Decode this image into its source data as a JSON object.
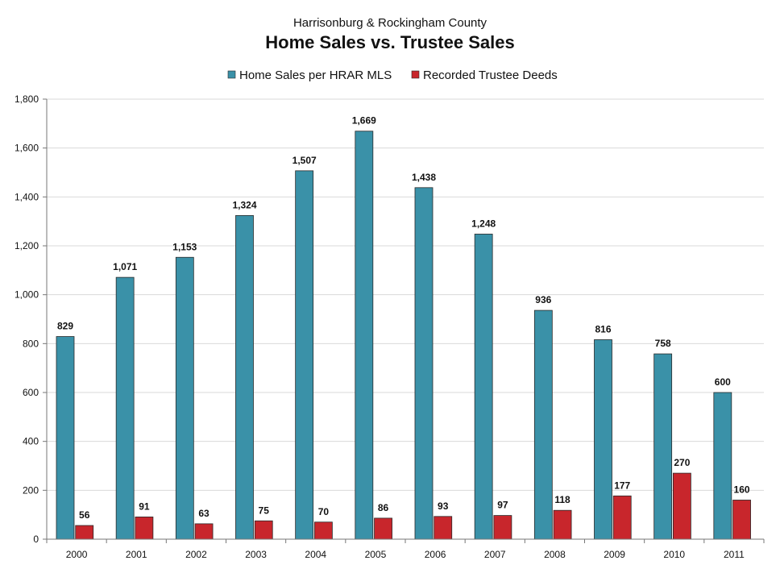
{
  "chart_data": {
    "type": "bar",
    "subtitle": "Harrisonburg & Rockingham County",
    "title": "Home Sales vs. Trustee Sales",
    "xlabel": "",
    "ylabel": "",
    "categories": [
      "2000",
      "2001",
      "2002",
      "2003",
      "2004",
      "2005",
      "2006",
      "2007",
      "2008",
      "2009",
      "2010",
      "2011"
    ],
    "series": [
      {
        "name": "Home Sales per HRAR MLS",
        "color": "#3a91a8",
        "values": [
          829,
          1071,
          1153,
          1324,
          1507,
          1669,
          1438,
          1248,
          936,
          816,
          758,
          600
        ],
        "labels": [
          "829",
          "1,071",
          "1,153",
          "1,324",
          "1,507",
          "1,669",
          "1,438",
          "1,248",
          "936",
          "816",
          "758",
          "600"
        ]
      },
      {
        "name": "Recorded Trustee Deeds",
        "color": "#c8262c",
        "values": [
          56,
          91,
          63,
          75,
          70,
          86,
          93,
          97,
          118,
          177,
          270,
          160
        ],
        "labels": [
          "56",
          "91",
          "63",
          "75",
          "70",
          "86",
          "93",
          "97",
          "118",
          "177",
          "270",
          "160"
        ]
      }
    ],
    "ylim": [
      0,
      1800
    ],
    "yticks": [
      "0",
      "200",
      "400",
      "600",
      "800",
      "1,000",
      "1,200",
      "1,400",
      "1,600",
      "1,800"
    ],
    "ytick_values": [
      0,
      200,
      400,
      600,
      800,
      1000,
      1200,
      1400,
      1600,
      1800
    ],
    "grid": true,
    "legend_position": "top"
  }
}
